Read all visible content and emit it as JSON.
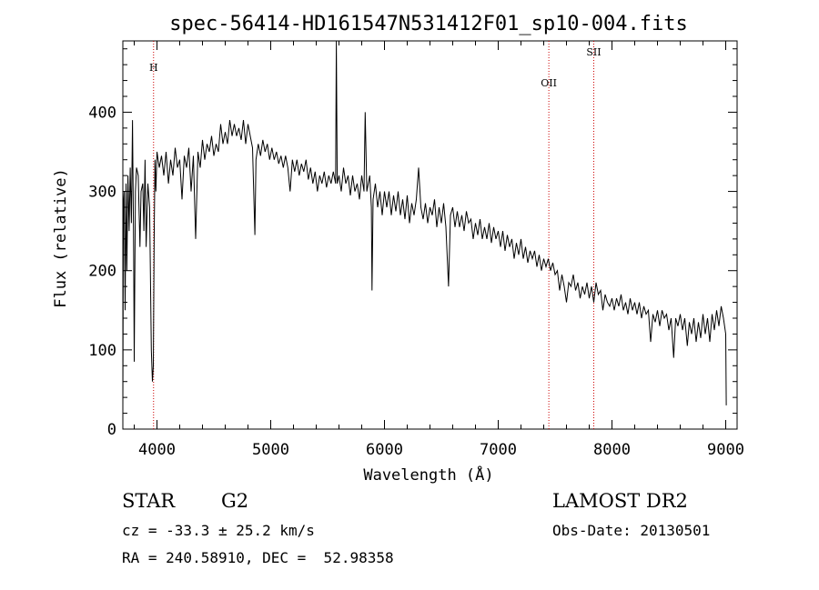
{
  "chart_data": {
    "type": "line",
    "title": "spec-56414-HD161547N531412F01_sp10-004.fits",
    "xlabel": "Wavelength (Å)",
    "ylabel": "Flux (relative)",
    "xlim": [
      3700,
      9100
    ],
    "ylim": [
      0,
      490
    ],
    "x_ticks": [
      4000,
      5000,
      6000,
      7000,
      8000,
      9000
    ],
    "y_ticks": [
      0,
      100,
      200,
      300,
      400
    ],
    "grid": false,
    "series": [
      {
        "color": "#000000",
        "points": [
          [
            3700,
            30
          ],
          [
            3705,
            280
          ],
          [
            3712,
            300
          ],
          [
            3720,
            150
          ],
          [
            3728,
            310
          ],
          [
            3735,
            200
          ],
          [
            3745,
            320
          ],
          [
            3755,
            250
          ],
          [
            3765,
            330
          ],
          [
            3775,
            260
          ],
          [
            3785,
            390
          ],
          [
            3795,
            220
          ],
          [
            3800,
            85
          ],
          [
            3810,
            300
          ],
          [
            3820,
            330
          ],
          [
            3835,
            320
          ],
          [
            3850,
            230
          ],
          [
            3860,
            300
          ],
          [
            3875,
            310
          ],
          [
            3885,
            250
          ],
          [
            3895,
            340
          ],
          [
            3905,
            230
          ],
          [
            3920,
            310
          ],
          [
            3935,
            280
          ],
          [
            3950,
            100
          ],
          [
            3960,
            60
          ],
          [
            3968,
            80
          ],
          [
            3975,
            240
          ],
          [
            3982,
            340
          ],
          [
            3990,
            300
          ],
          [
            4000,
            350
          ],
          [
            4020,
            330
          ],
          [
            4040,
            345
          ],
          [
            4060,
            320
          ],
          [
            4080,
            350
          ],
          [
            4101,
            310
          ],
          [
            4120,
            340
          ],
          [
            4140,
            320
          ],
          [
            4160,
            355
          ],
          [
            4180,
            330
          ],
          [
            4200,
            340
          ],
          [
            4220,
            290
          ],
          [
            4240,
            345
          ],
          [
            4260,
            330
          ],
          [
            4280,
            355
          ],
          [
            4300,
            300
          ],
          [
            4320,
            345
          ],
          [
            4340,
            240
          ],
          [
            4360,
            350
          ],
          [
            4380,
            330
          ],
          [
            4400,
            365
          ],
          [
            4420,
            340
          ],
          [
            4440,
            360
          ],
          [
            4460,
            350
          ],
          [
            4480,
            370
          ],
          [
            4500,
            345
          ],
          [
            4520,
            360
          ],
          [
            4540,
            350
          ],
          [
            4560,
            385
          ],
          [
            4580,
            360
          ],
          [
            4600,
            375
          ],
          [
            4620,
            360
          ],
          [
            4640,
            390
          ],
          [
            4660,
            370
          ],
          [
            4680,
            385
          ],
          [
            4700,
            370
          ],
          [
            4720,
            380
          ],
          [
            4740,
            365
          ],
          [
            4760,
            390
          ],
          [
            4780,
            360
          ],
          [
            4800,
            385
          ],
          [
            4820,
            370
          ],
          [
            4840,
            355
          ],
          [
            4861,
            245
          ],
          [
            4870,
            340
          ],
          [
            4890,
            360
          ],
          [
            4910,
            345
          ],
          [
            4930,
            365
          ],
          [
            4950,
            350
          ],
          [
            4970,
            360
          ],
          [
            4990,
            340
          ],
          [
            5010,
            355
          ],
          [
            5030,
            340
          ],
          [
            5050,
            350
          ],
          [
            5070,
            335
          ],
          [
            5090,
            345
          ],
          [
            5110,
            330
          ],
          [
            5130,
            345
          ],
          [
            5150,
            330
          ],
          [
            5170,
            300
          ],
          [
            5190,
            340
          ],
          [
            5210,
            325
          ],
          [
            5230,
            340
          ],
          [
            5250,
            320
          ],
          [
            5270,
            335
          ],
          [
            5290,
            325
          ],
          [
            5310,
            340
          ],
          [
            5330,
            315
          ],
          [
            5350,
            330
          ],
          [
            5370,
            310
          ],
          [
            5390,
            325
          ],
          [
            5410,
            300
          ],
          [
            5430,
            320
          ],
          [
            5450,
            310
          ],
          [
            5470,
            325
          ],
          [
            5490,
            305
          ],
          [
            5510,
            320
          ],
          [
            5530,
            310
          ],
          [
            5550,
            325
          ],
          [
            5570,
            310
          ],
          [
            5577,
            490
          ],
          [
            5585,
            310
          ],
          [
            5600,
            320
          ],
          [
            5620,
            300
          ],
          [
            5640,
            330
          ],
          [
            5660,
            310
          ],
          [
            5680,
            320
          ],
          [
            5700,
            295
          ],
          [
            5720,
            320
          ],
          [
            5740,
            300
          ],
          [
            5760,
            310
          ],
          [
            5780,
            290
          ],
          [
            5800,
            320
          ],
          [
            5820,
            300
          ],
          [
            5830,
            400
          ],
          [
            5845,
            300
          ],
          [
            5870,
            320
          ],
          [
            5885,
            280
          ],
          [
            5890,
            175
          ],
          [
            5900,
            290
          ],
          [
            5920,
            310
          ],
          [
            5940,
            280
          ],
          [
            5960,
            300
          ],
          [
            5980,
            270
          ],
          [
            6000,
            300
          ],
          [
            6020,
            280
          ],
          [
            6040,
            300
          ],
          [
            6060,
            270
          ],
          [
            6080,
            295
          ],
          [
            6100,
            275
          ],
          [
            6120,
            300
          ],
          [
            6140,
            270
          ],
          [
            6160,
            290
          ],
          [
            6180,
            265
          ],
          [
            6200,
            295
          ],
          [
            6220,
            260
          ],
          [
            6240,
            285
          ],
          [
            6260,
            270
          ],
          [
            6280,
            290
          ],
          [
            6300,
            330
          ],
          [
            6320,
            280
          ],
          [
            6340,
            265
          ],
          [
            6360,
            285
          ],
          [
            6380,
            260
          ],
          [
            6400,
            280
          ],
          [
            6420,
            270
          ],
          [
            6440,
            290
          ],
          [
            6460,
            255
          ],
          [
            6480,
            280
          ],
          [
            6500,
            260
          ],
          [
            6520,
            285
          ],
          [
            6540,
            255
          ],
          [
            6563,
            180
          ],
          [
            6580,
            270
          ],
          [
            6600,
            280
          ],
          [
            6620,
            255
          ],
          [
            6640,
            275
          ],
          [
            6660,
            255
          ],
          [
            6680,
            270
          ],
          [
            6700,
            250
          ],
          [
            6720,
            275
          ],
          [
            6740,
            260
          ],
          [
            6760,
            265
          ],
          [
            6780,
            240
          ],
          [
            6800,
            260
          ],
          [
            6820,
            245
          ],
          [
            6840,
            265
          ],
          [
            6860,
            240
          ],
          [
            6880,
            255
          ],
          [
            6900,
            240
          ],
          [
            6920,
            260
          ],
          [
            6940,
            235
          ],
          [
            6960,
            255
          ],
          [
            6980,
            240
          ],
          [
            7000,
            250
          ],
          [
            7020,
            230
          ],
          [
            7040,
            250
          ],
          [
            7060,
            225
          ],
          [
            7080,
            245
          ],
          [
            7100,
            230
          ],
          [
            7120,
            240
          ],
          [
            7140,
            215
          ],
          [
            7160,
            235
          ],
          [
            7180,
            220
          ],
          [
            7200,
            240
          ],
          [
            7220,
            215
          ],
          [
            7240,
            230
          ],
          [
            7260,
            210
          ],
          [
            7280,
            225
          ],
          [
            7300,
            215
          ],
          [
            7320,
            225
          ],
          [
            7340,
            205
          ],
          [
            7360,
            220
          ],
          [
            7380,
            200
          ],
          [
            7400,
            215
          ],
          [
            7420,
            205
          ],
          [
            7440,
            215
          ],
          [
            7460,
            200
          ],
          [
            7480,
            210
          ],
          [
            7500,
            195
          ],
          [
            7520,
            200
          ],
          [
            7540,
            175
          ],
          [
            7560,
            195
          ],
          [
            7580,
            180
          ],
          [
            7600,
            160
          ],
          [
            7620,
            185
          ],
          [
            7640,
            180
          ],
          [
            7660,
            195
          ],
          [
            7680,
            175
          ],
          [
            7700,
            185
          ],
          [
            7720,
            165
          ],
          [
            7740,
            180
          ],
          [
            7760,
            170
          ],
          [
            7780,
            185
          ],
          [
            7800,
            165
          ],
          [
            7820,
            180
          ],
          [
            7840,
            160
          ],
          [
            7860,
            185
          ],
          [
            7880,
            170
          ],
          [
            7900,
            175
          ],
          [
            7920,
            150
          ],
          [
            7940,
            170
          ],
          [
            7960,
            160
          ],
          [
            7980,
            155
          ],
          [
            8000,
            165
          ],
          [
            8020,
            150
          ],
          [
            8040,
            165
          ],
          [
            8060,
            155
          ],
          [
            8080,
            170
          ],
          [
            8100,
            150
          ],
          [
            8120,
            160
          ],
          [
            8140,
            145
          ],
          [
            8160,
            165
          ],
          [
            8180,
            150
          ],
          [
            8200,
            160
          ],
          [
            8220,
            145
          ],
          [
            8240,
            160
          ],
          [
            8260,
            140
          ],
          [
            8280,
            155
          ],
          [
            8300,
            145
          ],
          [
            8320,
            150
          ],
          [
            8340,
            110
          ],
          [
            8360,
            145
          ],
          [
            8380,
            135
          ],
          [
            8400,
            150
          ],
          [
            8420,
            130
          ],
          [
            8440,
            150
          ],
          [
            8460,
            140
          ],
          [
            8480,
            145
          ],
          [
            8500,
            125
          ],
          [
            8520,
            140
          ],
          [
            8542,
            90
          ],
          [
            8560,
            140
          ],
          [
            8580,
            130
          ],
          [
            8600,
            145
          ],
          [
            8620,
            125
          ],
          [
            8640,
            140
          ],
          [
            8662,
            105
          ],
          [
            8680,
            135
          ],
          [
            8700,
            120
          ],
          [
            8720,
            140
          ],
          [
            8740,
            110
          ],
          [
            8760,
            135
          ],
          [
            8780,
            115
          ],
          [
            8800,
            145
          ],
          [
            8820,
            120
          ],
          [
            8840,
            140
          ],
          [
            8860,
            110
          ],
          [
            8880,
            145
          ],
          [
            8900,
            125
          ],
          [
            8920,
            150
          ],
          [
            8940,
            130
          ],
          [
            8960,
            155
          ],
          [
            8980,
            140
          ],
          [
            9000,
            120
          ],
          [
            9005,
            30
          ]
        ]
      }
    ],
    "annotations": [
      {
        "label": "H",
        "x": 3970
      },
      {
        "label": "OII",
        "x": 7445
      },
      {
        "label": "SII",
        "x": 7840
      }
    ],
    "annotation_color": "#cc0000"
  },
  "info": {
    "object_class": "STAR",
    "subclass": "G2",
    "redshift": "cz = -33.3 ± 25.2 km/s",
    "coords": "RA = 240.58910, DEC =  52.98358",
    "survey": "LAMOST DR2",
    "obs_date": "Obs-Date: 20130501"
  }
}
